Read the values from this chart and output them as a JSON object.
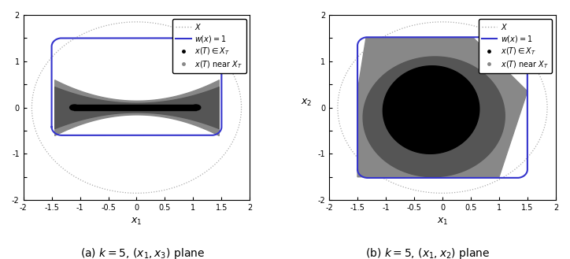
{
  "xlim": [
    -2,
    2
  ],
  "ylim": [
    -2,
    2
  ],
  "xlabel_left": "$x_1$",
  "xlabel_right": "$x_1$",
  "ylabel_right": "$x_2$",
  "caption_left": "(a) $k=5$, $(x_1, x_3)$ plane",
  "caption_right": "(b) $k=5$, $(x_1, x_2)$ plane",
  "circle_color": "#aaaaaa",
  "blue_color": "#3333cc",
  "dark_gray": "#555555",
  "light_gray": "#888888",
  "black": "#000000",
  "background": "#ffffff",
  "left_blue_x0": -1.5,
  "left_blue_x1": 1.5,
  "left_blue_y0": -0.6,
  "left_blue_y1": 1.5,
  "left_blue_r": 0.18,
  "right_blue_x0": -1.5,
  "right_blue_x1": 1.5,
  "right_blue_y0": -1.52,
  "right_blue_y1": 1.52,
  "right_blue_r": 0.18
}
